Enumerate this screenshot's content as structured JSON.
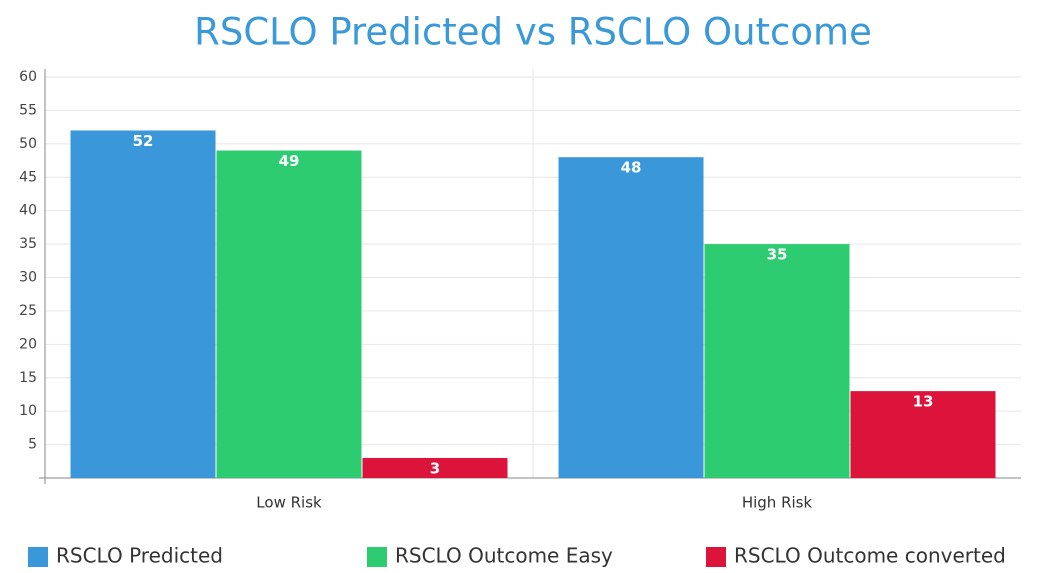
{
  "chart_data": {
    "type": "bar",
    "title": "RSCLO Predicted vs RSCLO Outcome",
    "categories": [
      "Low Risk",
      "High Risk"
    ],
    "series": [
      {
        "name": "RSCLO Predicted",
        "color": "#3a98da",
        "values": [
          52,
          48
        ]
      },
      {
        "name": "RSCLO Outcome Easy",
        "color": "#2ecc71",
        "values": [
          49,
          35
        ]
      },
      {
        "name": "RSCLO Outcome converted",
        "color": "#dc143c",
        "values": [
          3,
          13
        ]
      }
    ],
    "ylim": [
      0,
      60
    ],
    "yticks": [
      5,
      10,
      15,
      20,
      25,
      30,
      35,
      40,
      45,
      50,
      55,
      60
    ],
    "grid": true,
    "legend": "bottom"
  }
}
